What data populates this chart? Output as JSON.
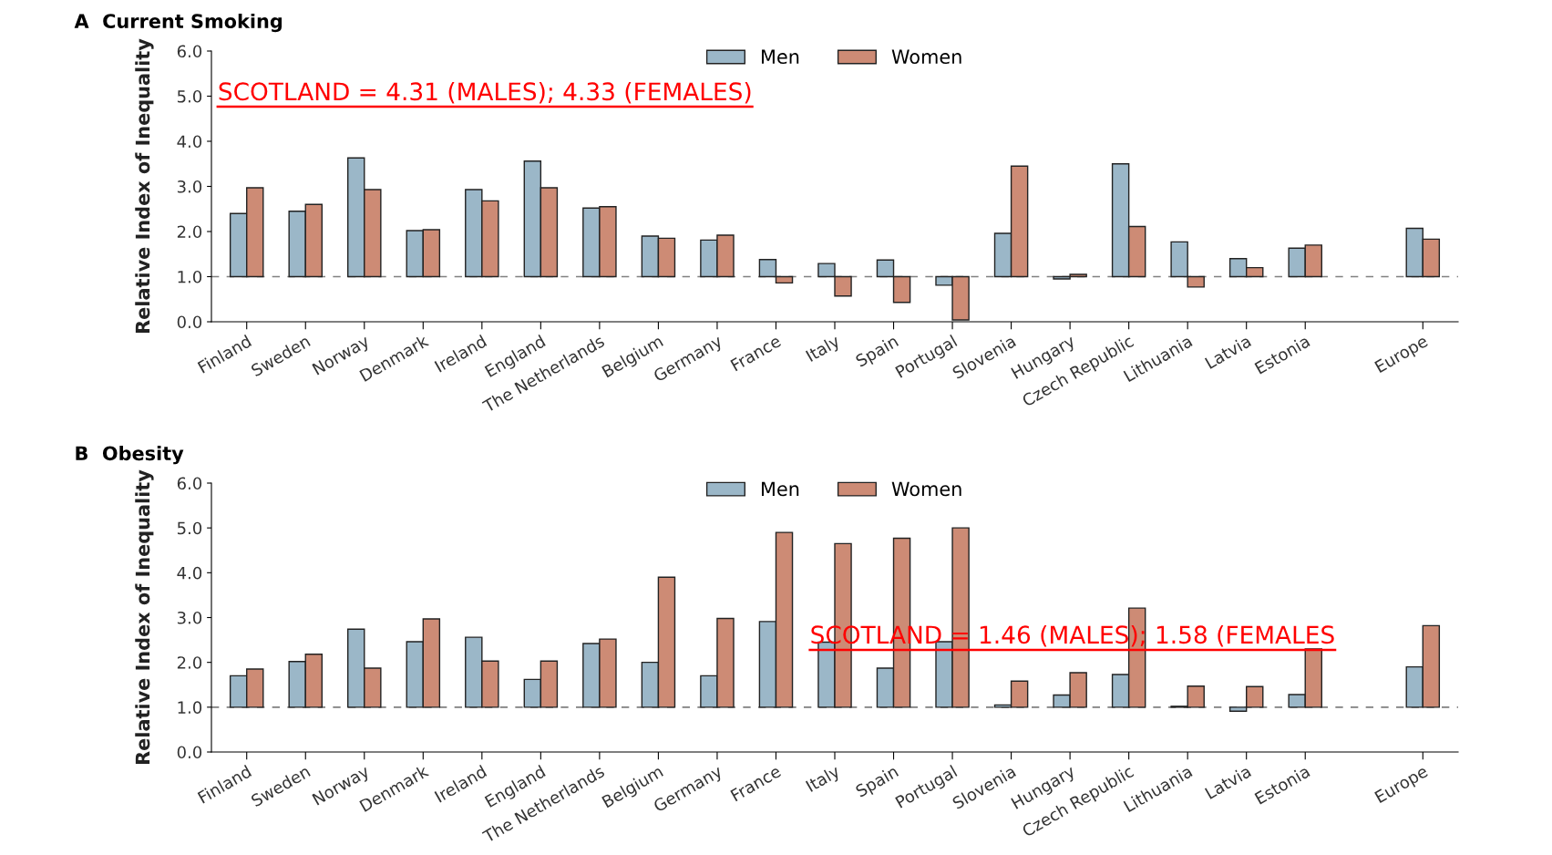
{
  "chart_data": [
    {
      "type": "bar",
      "title": "A  Current Smoking",
      "ylabel": "Relative Index of Inequality",
      "categories": [
        "Finland",
        "Sweden",
        "Norway",
        "Denmark",
        "Ireland",
        "England",
        "The Netherlands",
        "Belgium",
        "Germany",
        "France",
        "Italy",
        "Spain",
        "Portugal",
        "Slovenia",
        "Hungary",
        "Czech Republic",
        "Lithuania",
        "Latvia",
        "Estonia",
        null,
        "Europe"
      ],
      "series": [
        {
          "name": "Men",
          "color": "#9bb7c8",
          "base": [
            1,
            1,
            1,
            1,
            1,
            1,
            1,
            1,
            1,
            1,
            1,
            1,
            1,
            1,
            1,
            1,
            1,
            1,
            1,
            null,
            1
          ],
          "values": [
            1.4,
            1.45,
            2.63,
            1.02,
            1.93,
            2.56,
            1.52,
            0.9,
            0.81,
            0.38,
            0.29,
            0.37,
            -0.19,
            0.96,
            -0.05,
            2.5,
            0.77,
            0.4,
            0.63,
            null,
            1.07
          ]
        },
        {
          "name": "Women",
          "color": "#cd8b75",
          "base": [
            1,
            1,
            1,
            1,
            1,
            1,
            1,
            1,
            1,
            1,
            1,
            1,
            1,
            1,
            1,
            1,
            1,
            1,
            1,
            null,
            1
          ],
          "values": [
            1.97,
            1.6,
            1.93,
            1.04,
            1.68,
            1.97,
            1.55,
            0.85,
            0.92,
            -0.14,
            -0.43,
            -0.57,
            -0.96,
            2.45,
            0.05,
            1.11,
            -0.23,
            0.2,
            0.7,
            null,
            0.83
          ]
        }
      ],
      "ylim": [
        0,
        6
      ],
      "yticks": [
        {
          "value": 0,
          "label": "0.0"
        },
        {
          "value": 1,
          "label": "1.0"
        },
        {
          "value": 2,
          "label": "2.0"
        },
        {
          "value": 3,
          "label": "3.0"
        },
        {
          "value": 4,
          "label": "4.0"
        },
        {
          "value": 5,
          "label": "5.0"
        },
        {
          "value": 6,
          "label": "6.0"
        }
      ],
      "ref_lines": [
        {
          "axis": "y",
          "value": 1,
          "color": "#808080",
          "line_style": "dashed"
        }
      ],
      "annotations": [
        "SCOTLAND = 4.31 (MALES); 4.33 (FEMALES)"
      ],
      "legend": "top",
      "grid": false
    },
    {
      "type": "bar",
      "title": "B  Obesity",
      "ylabel": "Relative Index of Inequality",
      "categories": [
        "Finland",
        "Sweden",
        "Norway",
        "Denmark",
        "Ireland",
        "England",
        "The Netherlands",
        "Belgium",
        "Germany",
        "France",
        "Italy",
        "Spain",
        "Portugal",
        "Slovenia",
        "Hungary",
        "Czech Republic",
        "Lithuania",
        "Latvia",
        "Estonia",
        null,
        "Europe"
      ],
      "series": [
        {
          "name": "Men",
          "color": "#9bb7c8",
          "base": [
            1,
            1,
            1,
            1,
            1,
            1,
            1,
            1,
            1,
            1,
            1,
            1,
            1,
            1,
            1,
            1,
            1,
            1,
            1,
            null,
            1
          ],
          "values": [
            0.7,
            1.02,
            1.74,
            1.46,
            1.56,
            0.62,
            1.42,
            1.0,
            0.7,
            1.91,
            1.45,
            0.87,
            1.46,
            0.05,
            0.27,
            0.73,
            0.02,
            -0.09,
            0.28,
            null,
            0.9
          ]
        },
        {
          "name": "Women",
          "color": "#cd8b75",
          "base": [
            1,
            1,
            1,
            1,
            1,
            1,
            1,
            1,
            1,
            1,
            1,
            1,
            1,
            1,
            1,
            1,
            1,
            1,
            1,
            null,
            1
          ],
          "values": [
            0.85,
            1.18,
            0.87,
            1.97,
            1.03,
            1.03,
            1.52,
            2.9,
            1.98,
            3.9,
            3.65,
            3.77,
            4.0,
            0.58,
            0.77,
            2.21,
            0.47,
            0.46,
            1.3,
            null,
            1.82
          ]
        }
      ],
      "ylim": [
        0,
        6
      ],
      "yticks": [
        {
          "value": 0,
          "label": "0.0"
        },
        {
          "value": 1,
          "label": "1.0"
        },
        {
          "value": 2,
          "label": "2.0"
        },
        {
          "value": 3,
          "label": "3.0"
        },
        {
          "value": 4,
          "label": "4.0"
        },
        {
          "value": 5,
          "label": "5.0"
        },
        {
          "value": 6,
          "label": "6.0"
        }
      ],
      "ref_lines": [
        {
          "axis": "y",
          "value": 1,
          "color": "#808080",
          "line_style": "dashed"
        }
      ],
      "annotations": [
        "SCOTLAND = 1.46 (MALES); 1.58 (FEMALES"
      ],
      "legend": "top",
      "grid": false
    }
  ]
}
